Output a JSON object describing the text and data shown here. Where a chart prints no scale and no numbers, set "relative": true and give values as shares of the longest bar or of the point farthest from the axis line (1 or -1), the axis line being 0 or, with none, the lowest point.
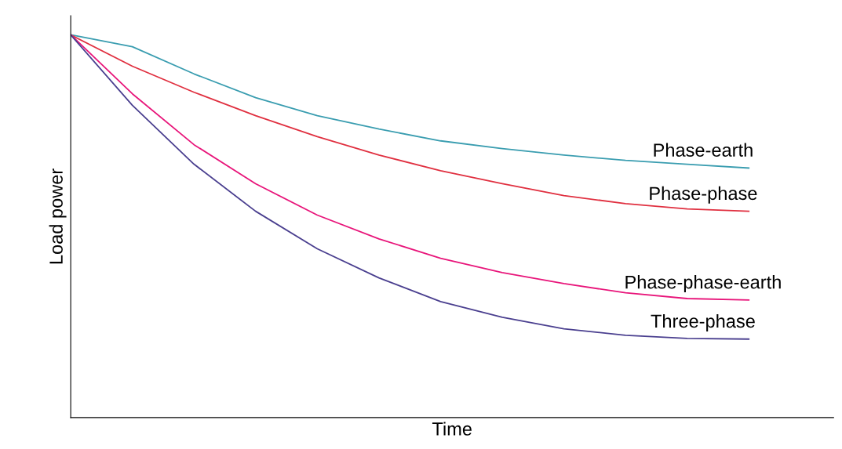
{
  "chart_data": {
    "type": "line",
    "relative": true,
    "xlabel": "Time",
    "ylabel": "Load power",
    "categories": [
      null,
      null,
      null,
      null,
      null,
      null,
      null,
      null,
      null,
      null,
      null,
      null
    ],
    "legend": false,
    "marker": "none",
    "line_style": "solid",
    "series": [
      {
        "name": "Phase-earth",
        "color": "#3a9db0",
        "values": [
          1,
          0.969,
          0.898,
          0.836,
          0.789,
          0.754,
          0.723,
          0.703,
          0.686,
          0.672,
          0.662,
          0.652
        ]
      },
      {
        "name": "Phase-phase",
        "color": "#e03040",
        "values": [
          1,
          0.918,
          0.85,
          0.789,
          0.734,
          0.686,
          0.645,
          0.611,
          0.58,
          0.559,
          0.545,
          0.539
        ]
      },
      {
        "name": "Phase-phase-earth",
        "color": "#e8157a",
        "values": [
          1,
          0.846,
          0.713,
          0.611,
          0.529,
          0.467,
          0.416,
          0.379,
          0.35,
          0.326,
          0.311,
          0.307
        ]
      },
      {
        "name": "Three-phase",
        "color": "#4a3f8f",
        "values": [
          1,
          0.816,
          0.662,
          0.539,
          0.441,
          0.365,
          0.303,
          0.262,
          0.232,
          0.215,
          0.207,
          0.205
        ]
      }
    ]
  }
}
